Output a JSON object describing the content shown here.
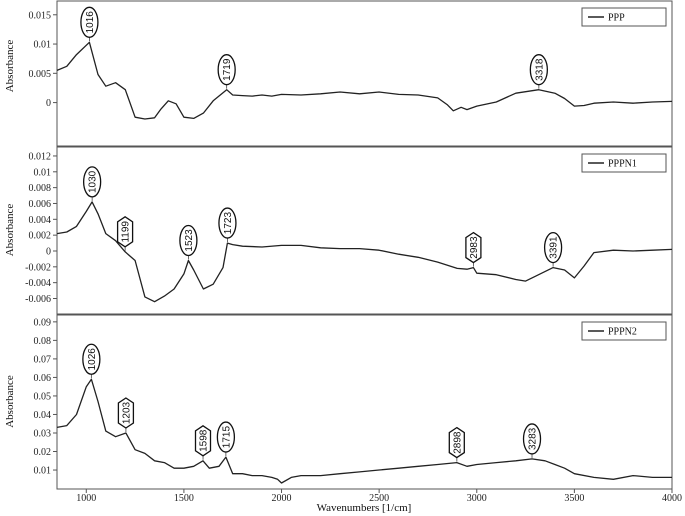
{
  "chart_data": {
    "type": "line",
    "xlabel": "Wavenumbers [1/cm]",
    "ylabel": "Absorbance",
    "xlim": [
      850,
      4000
    ],
    "xticks": [
      1000,
      1500,
      2000,
      2500,
      3000,
      3500,
      4000
    ],
    "colors": {
      "line": "#222222",
      "axis": "#555555",
      "panel_border": "#555555"
    },
    "panels": [
      {
        "legend": "PPP",
        "ylim": [
          -0.004,
          0.0165
        ],
        "yticks": [
          0,
          0.005,
          0.01,
          0.015
        ],
        "ytick_labels": [
          "0",
          "0.005",
          "0.01",
          "0.015"
        ],
        "x": [
          850,
          900,
          950,
          1016,
          1060,
          1100,
          1150,
          1200,
          1250,
          1300,
          1350,
          1380,
          1420,
          1460,
          1500,
          1550,
          1600,
          1650,
          1719,
          1750,
          1800,
          1850,
          1900,
          1950,
          2000,
          2100,
          2200,
          2300,
          2400,
          2500,
          2600,
          2700,
          2800,
          2850,
          2880,
          2920,
          2950,
          3000,
          3100,
          3200,
          3318,
          3400,
          3450,
          3500,
          3550,
          3600,
          3700,
          3800,
          3900,
          4000
        ],
        "y": [
          0.0055,
          0.0062,
          0.0082,
          0.0103,
          0.0048,
          0.0028,
          0.0034,
          0.0022,
          -0.0025,
          -0.0028,
          -0.0026,
          -0.0012,
          0.0003,
          -0.0002,
          -0.0025,
          -0.0027,
          -0.0018,
          0.0003,
          0.0022,
          0.0013,
          0.0012,
          0.0011,
          0.0013,
          0.0011,
          0.0014,
          0.0013,
          0.0015,
          0.0018,
          0.0015,
          0.0018,
          0.0014,
          0.0013,
          0.0008,
          -0.0004,
          -0.0014,
          -0.0008,
          -0.0012,
          -0.0006,
          0.0001,
          0.0016,
          0.0022,
          0.0016,
          0.0007,
          -0.0006,
          -0.0005,
          -0.0001,
          0.0001,
          -0.0001,
          0.0001,
          0.0002
        ],
        "peaks": [
          {
            "label": "1016",
            "x": 1016,
            "shape": "ellipse"
          },
          {
            "label": "1719",
            "x": 1719,
            "shape": "ellipse"
          },
          {
            "label": "3318",
            "x": 3318,
            "shape": "ellipse"
          }
        ]
      },
      {
        "legend": "PPPN1",
        "ylim": [
          -0.0072,
          0.0125
        ],
        "yticks": [
          -0.006,
          -0.004,
          -0.002,
          0,
          0.002,
          0.004,
          0.006,
          0.008,
          0.01,
          0.012
        ],
        "ytick_labels": [
          "-0.006",
          "-0.004",
          "-0.002",
          "0",
          "0.002",
          "0.004",
          "0.006",
          "0.008",
          "0.01",
          "0.012"
        ],
        "x": [
          850,
          900,
          950,
          1000,
          1030,
          1060,
          1100,
          1150,
          1199,
          1250,
          1300,
          1350,
          1400,
          1450,
          1500,
          1523,
          1550,
          1600,
          1650,
          1700,
          1723,
          1750,
          1800,
          1900,
          2000,
          2100,
          2200,
          2300,
          2400,
          2500,
          2600,
          2700,
          2800,
          2900,
          2950,
          2983,
          3000,
          3100,
          3200,
          3250,
          3300,
          3391,
          3450,
          3500,
          3550,
          3600,
          3700,
          3800,
          3900,
          4000
        ],
        "y": [
          0.0022,
          0.0024,
          0.0031,
          0.005,
          0.0062,
          0.0047,
          0.0022,
          0.0013,
          -0.0001,
          -0.0012,
          -0.0058,
          -0.0064,
          -0.0057,
          -0.0048,
          -0.0029,
          -0.0012,
          -0.0024,
          -0.0048,
          -0.0042,
          -0.0021,
          0.001,
          0.0008,
          0.0006,
          0.0005,
          0.0007,
          0.0007,
          0.0004,
          0.0003,
          0.0003,
          0.0001,
          -0.0004,
          -0.0008,
          -0.0014,
          -0.0022,
          -0.0023,
          -0.0021,
          -0.0028,
          -0.003,
          -0.0036,
          -0.0038,
          -0.0032,
          -0.0021,
          -0.0024,
          -0.0034,
          -0.0019,
          -0.0002,
          0.0001,
          0.0,
          0.0001,
          0.0002
        ],
        "peaks": [
          {
            "label": "1030",
            "x": 1030,
            "shape": "ellipse"
          },
          {
            "label": "1199",
            "x": 1199,
            "shape": "hexagon"
          },
          {
            "label": "1523",
            "x": 1523,
            "shape": "ellipse"
          },
          {
            "label": "1723",
            "x": 1723,
            "shape": "ellipse"
          },
          {
            "label": "2983",
            "x": 2983,
            "shape": "hexagon"
          },
          {
            "label": "3391",
            "x": 3391,
            "shape": "ellipse"
          }
        ]
      },
      {
        "legend": "PPPN2",
        "ylim": [
          0.003,
          0.091
        ],
        "yticks": [
          0.01,
          0.02,
          0.03,
          0.04,
          0.05,
          0.06,
          0.07,
          0.08,
          0.09
        ],
        "ytick_labels": [
          "0.01",
          "0.02",
          "0.03",
          "0.04",
          "0.05",
          "0.06",
          "0.07",
          "0.08",
          "0.09"
        ],
        "x": [
          850,
          900,
          950,
          1000,
          1026,
          1060,
          1100,
          1150,
          1203,
          1250,
          1300,
          1350,
          1400,
          1450,
          1500,
          1550,
          1598,
          1630,
          1680,
          1715,
          1750,
          1800,
          1850,
          1900,
          1950,
          1980,
          2000,
          2050,
          2100,
          2200,
          2300,
          2400,
          2500,
          2600,
          2700,
          2800,
          2898,
          2950,
          3000,
          3100,
          3200,
          3283,
          3350,
          3400,
          3450,
          3500,
          3600,
          3700,
          3800,
          3900,
          4000
        ],
        "y": [
          0.033,
          0.034,
          0.04,
          0.055,
          0.059,
          0.047,
          0.031,
          0.028,
          0.03,
          0.021,
          0.019,
          0.015,
          0.014,
          0.011,
          0.011,
          0.012,
          0.015,
          0.011,
          0.012,
          0.017,
          0.008,
          0.008,
          0.007,
          0.007,
          0.006,
          0.005,
          0.003,
          0.006,
          0.007,
          0.007,
          0.008,
          0.009,
          0.01,
          0.011,
          0.012,
          0.013,
          0.014,
          0.012,
          0.013,
          0.014,
          0.015,
          0.016,
          0.015,
          0.013,
          0.011,
          0.008,
          0.006,
          0.005,
          0.007,
          0.006,
          0.006
        ],
        "peaks": [
          {
            "label": "1026",
            "x": 1026,
            "shape": "ellipse"
          },
          {
            "label": "1203",
            "x": 1203,
            "shape": "hexagon"
          },
          {
            "label": "1598",
            "x": 1598,
            "shape": "hexagon"
          },
          {
            "label": "1715",
            "x": 1715,
            "shape": "ellipse"
          },
          {
            "label": "2898",
            "x": 2898,
            "shape": "hexagon"
          },
          {
            "label": "3283",
            "x": 3283,
            "shape": "ellipse"
          }
        ]
      }
    ]
  }
}
